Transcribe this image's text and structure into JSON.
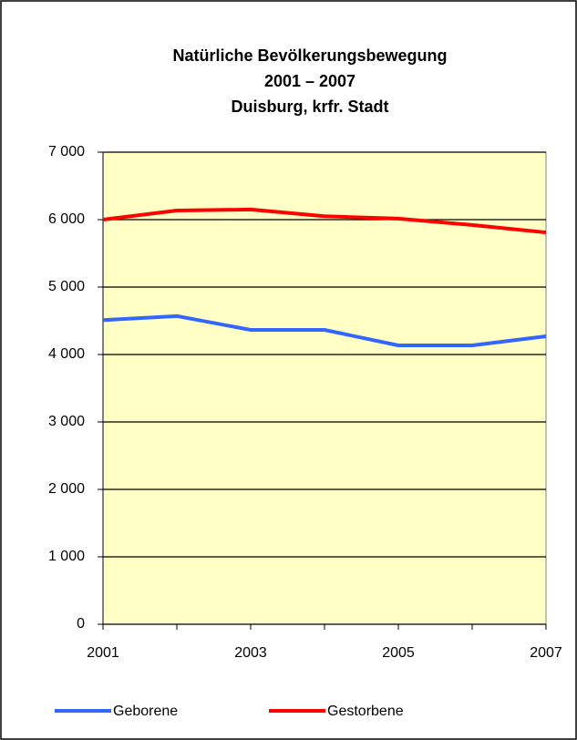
{
  "chart_data": {
    "type": "line",
    "title": [
      "Natürliche Bevölkerungsbewegung",
      "2001 – 2007",
      "Duisburg, krfr. Stadt"
    ],
    "x": [
      2001,
      2002,
      2003,
      2004,
      2005,
      2006,
      2007
    ],
    "xlim": [
      2001,
      2007
    ],
    "xticks": [
      2001,
      2003,
      2005,
      2007
    ],
    "ylim": [
      0,
      7000
    ],
    "yticks": [
      0,
      {
        "value": 1000,
        "label": "1 000"
      },
      {
        "value": 2000,
        "label": "2 000"
      },
      {
        "value": 3000,
        "label": "3 000"
      },
      {
        "value": 4000,
        "label": "4 000"
      },
      {
        "value": 5000,
        "label": "5 000"
      },
      {
        "value": 6000,
        "label": "6 000"
      },
      {
        "value": 7000,
        "label": "7 000"
      }
    ],
    "grid": true,
    "legend": "bottom",
    "series": [
      {
        "name": "Geborene",
        "color": "#3366ff",
        "values": [
          4510,
          4570,
          4365,
          4365,
          4135,
          4135,
          4270
        ]
      },
      {
        "name": "Gestorbene",
        "color": "#ff0000",
        "values": [
          6000,
          6135,
          6150,
          6050,
          6015,
          5920,
          5810
        ]
      }
    ]
  }
}
